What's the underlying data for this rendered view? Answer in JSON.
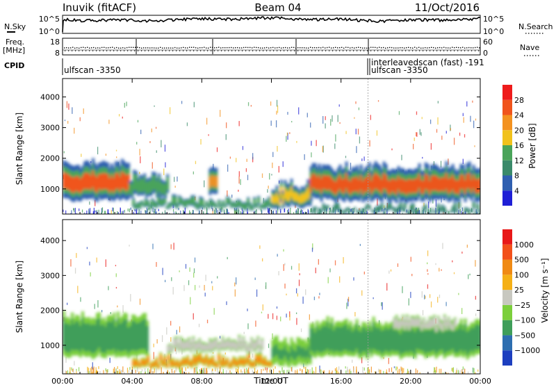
{
  "header": {
    "station": "Inuvik (fitACF)",
    "beam": "Beam 04",
    "date": "11/Oct/2016"
  },
  "noise_panel": {
    "left_label": "N.Sky",
    "left_ticks": [
      "10^5",
      "10^0"
    ],
    "right_label": "N.Search",
    "right_ticks": [
      "10^5",
      "10^0"
    ]
  },
  "freq_panel": {
    "left_label_1": "Freq.",
    "left_label_2": "[MHz]",
    "left_ticks": [
      "18",
      "8"
    ],
    "right_label": "Nave",
    "right_ticks": [
      "60",
      "0"
    ]
  },
  "cpid": {
    "label": "CPID",
    "segments": [
      {
        "name": "ulfscan -3350",
        "start_hour": 0
      },
      {
        "name": "interleavedscan (fast) -191",
        "start_hour": 17.5
      },
      {
        "name": "ulfscan -3350",
        "start_hour": 17.5
      }
    ]
  },
  "chart_data": [
    {
      "type": "heatmap",
      "title": "",
      "xlabel": "Time UT",
      "ylabel": "Slant Range [km]",
      "x_ticks": [
        "00:00",
        "04:00",
        "08:00",
        "12:00",
        "16:00",
        "20:00",
        "00:00"
      ],
      "xlim_hours": [
        0,
        24
      ],
      "y_ticks": [
        1000,
        2000,
        3000,
        4000
      ],
      "ylim": [
        180,
        4600
      ],
      "colorbar": {
        "label": "Power [dB]",
        "ticks": [
          4,
          8,
          12,
          16,
          20,
          24,
          28
        ],
        "colors": [
          "#1f1fd6",
          "#2f5fb0",
          "#3a8a6a",
          "#4aa45a",
          "#f1c21c",
          "#f39220",
          "#f0541c",
          "#ee1b1b"
        ]
      },
      "echo_regions": [
        {
          "t0": 0.0,
          "t1": 3.8,
          "r0": 600,
          "r1": 1900,
          "core_value": 28
        },
        {
          "t0": 3.8,
          "t1": 6.0,
          "r0": 750,
          "r1": 1500,
          "core_value": 16
        },
        {
          "t0": 4.0,
          "t1": 12.0,
          "r0": 350,
          "r1": 700,
          "core_value": 14
        },
        {
          "t0": 8.4,
          "t1": 8.8,
          "r0": 800,
          "r1": 1800,
          "core_value": 24
        },
        {
          "t0": 12.0,
          "t1": 14.2,
          "r0": 400,
          "r1": 1200,
          "core_value": 18
        },
        {
          "t0": 14.2,
          "t1": 24.0,
          "r0": 600,
          "r1": 1800,
          "core_value": 26
        },
        {
          "t0": 14.2,
          "t1": 24.0,
          "r0": 200,
          "r1": 450,
          "core_value": 10
        }
      ]
    },
    {
      "type": "heatmap",
      "title": "",
      "xlabel": "Time UT",
      "ylabel": "Slant Range [km]",
      "x_ticks": [
        "00:00",
        "04:00",
        "08:00",
        "12:00",
        "16:00",
        "20:00",
        "00:00"
      ],
      "xlim_hours": [
        0,
        24
      ],
      "y_ticks": [
        1000,
        2000,
        3000,
        4000
      ],
      "ylim": [
        180,
        4600
      ],
      "colorbar": {
        "label": "Velocity [m s⁻¹]",
        "ticks": [
          "1000",
          "500",
          "100",
          "25",
          "−25",
          "−100",
          "−500",
          "−1000"
        ],
        "colors": [
          "#1d3fbf",
          "#2d6eb0",
          "#3f9e5a",
          "#7ccf3c",
          "#c8c8c0",
          "#f5b016",
          "#f08a14",
          "#f2501a",
          "#e81818"
        ]
      },
      "echo_regions": [
        {
          "t0": 0.0,
          "t1": 4.8,
          "r0": 650,
          "r1": 1900,
          "core_value": -300
        },
        {
          "t0": 4.0,
          "t1": 12.0,
          "r0": 350,
          "r1": 700,
          "core_value": 150
        },
        {
          "t0": 6.0,
          "t1": 11.5,
          "r0": 800,
          "r1": 1200,
          "core_value": 0
        },
        {
          "t0": 12.0,
          "t1": 14.2,
          "r0": 400,
          "r1": 1200,
          "core_value": -200
        },
        {
          "t0": 14.2,
          "t1": 24.0,
          "r0": 650,
          "r1": 1700,
          "core_value": -400
        },
        {
          "t0": 19.0,
          "t1": 22.5,
          "r0": 1400,
          "r1": 1800,
          "core_value": 0
        }
      ]
    }
  ]
}
